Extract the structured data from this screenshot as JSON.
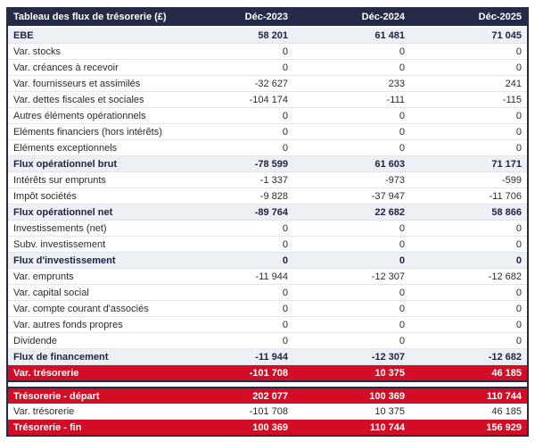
{
  "table": {
    "title": "Tableau des flux de trésorerie (£)",
    "columns": [
      "Déc-2023",
      "Déc-2024",
      "Déc-2025"
    ],
    "rows": [
      {
        "label": "EBE",
        "values": [
          "58 201",
          "61 481",
          "71 045"
        ],
        "style": "subtotal"
      },
      {
        "label": "Var. stocks",
        "values": [
          "0",
          "0",
          "0"
        ],
        "style": "normal"
      },
      {
        "label": "Var. créances à recevoir",
        "values": [
          "0",
          "0",
          "0"
        ],
        "style": "normal"
      },
      {
        "label": "Var. fournisseurs et assimilés",
        "values": [
          "-32 627",
          "233",
          "241"
        ],
        "style": "normal"
      },
      {
        "label": "Var. dettes fiscales et sociales",
        "values": [
          "-104 174",
          "-111",
          "-115"
        ],
        "style": "normal"
      },
      {
        "label": "Autres éléments opérationnels",
        "values": [
          "0",
          "0",
          "0"
        ],
        "style": "normal"
      },
      {
        "label": "Eléments financiers (hors intérêts)",
        "values": [
          "0",
          "0",
          "0"
        ],
        "style": "normal"
      },
      {
        "label": "Eléments exceptionnels",
        "values": [
          "0",
          "0",
          "0"
        ],
        "style": "normal"
      },
      {
        "label": "Flux opérationnel brut",
        "values": [
          "-78 599",
          "61 603",
          "71 171"
        ],
        "style": "subtotal"
      },
      {
        "label": "Intérêts sur emprunts",
        "values": [
          "-1 337",
          "-973",
          "-599"
        ],
        "style": "normal"
      },
      {
        "label": "Impôt sociétés",
        "values": [
          "-9 828",
          "-37 947",
          "-11 706"
        ],
        "style": "normal"
      },
      {
        "label": "Flux opérationnel net",
        "values": [
          "-89 764",
          "22 682",
          "58 866"
        ],
        "style": "subtotal"
      },
      {
        "label": "Investissements (net)",
        "values": [
          "0",
          "0",
          "0"
        ],
        "style": "normal"
      },
      {
        "label": "Subv. investissement",
        "values": [
          "0",
          "0",
          "0"
        ],
        "style": "normal"
      },
      {
        "label": "Flux d'investissement",
        "values": [
          "0",
          "0",
          "0"
        ],
        "style": "subtotal"
      },
      {
        "label": "Var. emprunts",
        "values": [
          "-11 944",
          "-12 307",
          "-12 682"
        ],
        "style": "normal"
      },
      {
        "label": "Var. capital social",
        "values": [
          "0",
          "0",
          "0"
        ],
        "style": "normal"
      },
      {
        "label": "Var. compte courant d'associés",
        "values": [
          "0",
          "0",
          "0"
        ],
        "style": "normal"
      },
      {
        "label": "Var. autres fonds propres",
        "values": [
          "0",
          "0",
          "0"
        ],
        "style": "normal"
      },
      {
        "label": "Dividende",
        "values": [
          "0",
          "0",
          "0"
        ],
        "style": "normal"
      },
      {
        "label": "Flux de financement",
        "values": [
          "-11 944",
          "-12 307",
          "-12 682"
        ],
        "style": "subtotal"
      },
      {
        "label": "Var. trésorerie",
        "values": [
          "-101 708",
          "10 375",
          "46 185"
        ],
        "style": "highlight"
      },
      {
        "label": "",
        "values": [
          "",
          "",
          ""
        ],
        "style": "spacer"
      },
      {
        "label": "Trésorerie - départ",
        "values": [
          "202 077",
          "100 369",
          "110 744"
        ],
        "style": "highlight"
      },
      {
        "label": "Var. trésorerie",
        "values": [
          "-101 708",
          "10 375",
          "46 185"
        ],
        "style": "normal"
      },
      {
        "label": "Trésorerie - fin",
        "values": [
          "100 369",
          "110 744",
          "156 929"
        ],
        "style": "highlight"
      }
    ],
    "colors": {
      "header_bg": "#252b47",
      "highlight_bg": "#d40d26",
      "subtotal_bg": "#edf0f5",
      "row_border": "#e3e6eb",
      "header_text": "#ffffff",
      "body_text": "#2b2b2b"
    }
  }
}
